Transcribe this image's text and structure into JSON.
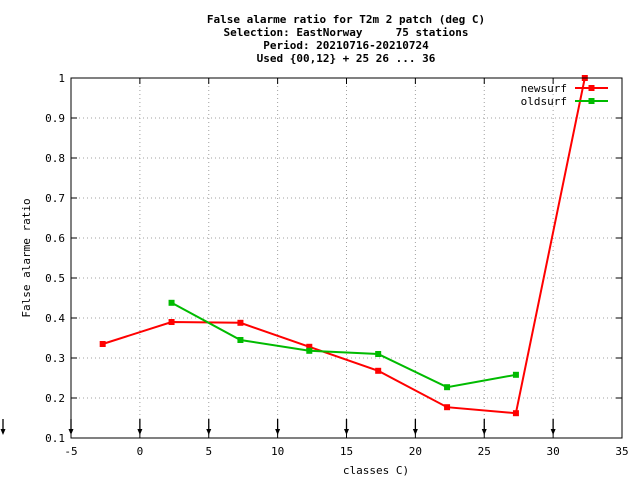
{
  "chart_data": {
    "type": "line",
    "title_lines": [
      "False alarme ratio  for T2m 2 patch (deg C)",
      "Selection: EastNorway     75 stations",
      "Period: 20210716-20210724",
      "Used {00,12} + 25 26 ... 36"
    ],
    "xlabel": "classes C)",
    "ylabel": "False alarme ratio",
    "xlim": [
      -5,
      35
    ],
    "ylim": [
      0.1,
      1.0
    ],
    "xticks": [
      "-5",
      "0",
      "5",
      "10",
      "15",
      "20",
      "25",
      "30",
      "35"
    ],
    "yticks": [
      "0.1",
      "0.2",
      "0.3",
      "0.4",
      "0.5",
      "0.6",
      "0.7",
      "0.8",
      "0.9",
      "1"
    ],
    "grid": true,
    "legend_position": "top-right",
    "arrow_markers_x": [
      -5,
      0,
      5,
      10,
      15,
      20,
      25,
      30
    ],
    "series": [
      {
        "name": "newsurf",
        "color": "#ff0000",
        "x": [
          -2.7,
          2.3,
          7.3,
          12.3,
          17.3,
          22.3,
          27.3,
          32.3
        ],
        "y": [
          0.335,
          0.39,
          0.388,
          0.328,
          0.268,
          0.177,
          0.162,
          1.0
        ]
      },
      {
        "name": "oldsurf",
        "color": "#00bb00",
        "x": [
          2.3,
          7.3,
          12.3,
          17.3,
          22.3,
          27.3
        ],
        "y": [
          0.438,
          0.345,
          0.318,
          0.31,
          0.227,
          0.258
        ]
      }
    ]
  }
}
